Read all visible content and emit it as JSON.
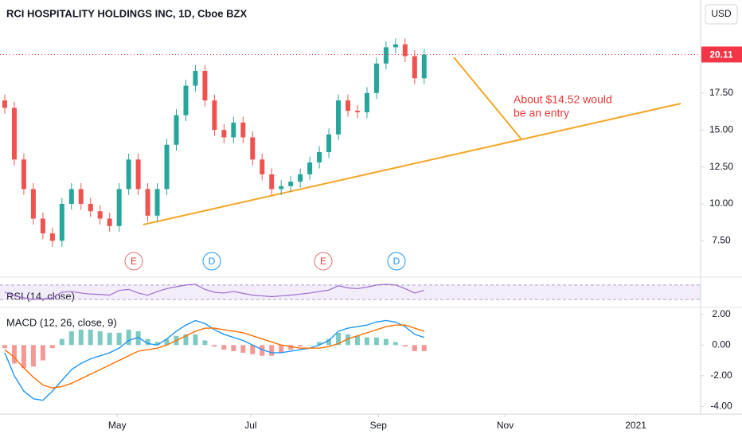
{
  "chart_data": [
    {
      "type": "candlestick",
      "title": "RCI HOSPITALITY HOLDINGS INC, 1D, Cboe BZX",
      "currency": "USD",
      "open": [
        17,
        16.5,
        13,
        11,
        9,
        8,
        7.5,
        10,
        11,
        10,
        9.5,
        9,
        8.5,
        11,
        13,
        11,
        9.2,
        11,
        14,
        16,
        18,
        19,
        17,
        15,
        14.5,
        15.5,
        14.5,
        13,
        12,
        11,
        11.2,
        11.5,
        12,
        12.8,
        13.5,
        14.7,
        17,
        16.3,
        16.2,
        17.5,
        19.5,
        20.6,
        20.8,
        20,
        18.5
      ],
      "high": [
        17.4,
        16.9,
        13.4,
        11.4,
        9.4,
        8.4,
        10.4,
        11.4,
        11.4,
        10.4,
        9.9,
        9.4,
        11.4,
        13.4,
        13.4,
        11.4,
        11.4,
        14.4,
        16.4,
        18.4,
        19.4,
        19.4,
        17.4,
        15.4,
        15.9,
        15.9,
        14.9,
        13.4,
        12.4,
        11.6,
        11.9,
        12.4,
        13.2,
        13.9,
        15.1,
        17.4,
        17.4,
        16.7,
        17.9,
        19.9,
        21,
        21.2,
        21.2,
        20.4,
        20.51
      ],
      "low": [
        16.1,
        12.6,
        10.6,
        8.6,
        7.6,
        7.1,
        7.1,
        9.6,
        9.6,
        9.1,
        8.6,
        8.1,
        8.1,
        10.6,
        10.6,
        8.8,
        8.8,
        10.6,
        13.6,
        15.6,
        17.6,
        16.6,
        14.6,
        14.1,
        14.1,
        14.1,
        12.6,
        11.6,
        10.6,
        10.6,
        10.8,
        11.1,
        11.6,
        12.4,
        13.1,
        14.3,
        15.9,
        15.8,
        15.8,
        17.1,
        19.1,
        20.2,
        19.6,
        18.1,
        18.1
      ],
      "close": [
        16.5,
        13,
        11,
        9,
        8,
        7.5,
        10,
        11,
        10,
        9.5,
        9,
        8.5,
        11,
        13,
        11,
        9.2,
        11,
        14,
        16,
        18,
        19,
        17,
        15,
        14.5,
        15.5,
        14.5,
        13,
        12,
        11,
        11.2,
        11.5,
        12,
        12.8,
        13.5,
        14.7,
        17,
        16.3,
        16.2,
        17.5,
        19.5,
        20.6,
        20.8,
        20,
        18.5,
        20.11
      ],
      "up_color": "#26a69a",
      "down_color": "#ef5350",
      "price_color": "#f23645",
      "ylim": [
        5.2,
        23.8
      ],
      "yticks": [
        {
          "value": 7.5,
          "label": "7.50"
        },
        {
          "value": 10,
          "label": "10.00"
        },
        {
          "value": 12.5,
          "label": "12.50"
        },
        {
          "value": 15,
          "label": "15.00"
        },
        {
          "value": 17.5,
          "label": "17.50"
        }
      ],
      "xlim": [
        -0.5,
        73
      ],
      "xticks": [
        {
          "value": 11.8,
          "label": "May"
        },
        {
          "value": 25.8,
          "label": "Jul"
        },
        {
          "value": 39.2,
          "label": "Sep"
        },
        {
          "value": 52.5,
          "label": "Nov"
        },
        {
          "value": 66.2,
          "label": "2021"
        }
      ],
      "events": [
        "E",
        "D",
        "E",
        "D"
      ],
      "annotation": [
        "About $14.52 would",
        "be an entry"
      ],
      "grid": false
    },
    {
      "type": "line",
      "title": "RSI (14, close)",
      "color": "#9c6bd0",
      "values": [
        50,
        40,
        35,
        30,
        32,
        35,
        50,
        52,
        48,
        45,
        44,
        42,
        55,
        58,
        48,
        42,
        52,
        60,
        65,
        70,
        72,
        58,
        50,
        48,
        52,
        47,
        42,
        40,
        38,
        40,
        42,
        45,
        48,
        52,
        56,
        68,
        62,
        60,
        64,
        70,
        72,
        70,
        60,
        48,
        55
      ],
      "ylim": [
        15,
        85
      ],
      "band": [
        30,
        70
      ]
    },
    {
      "type": "macd",
      "title": "MACD (12, 26, close, 9)",
      "series": [
        {
          "color": "#2196f3",
          "values": [
            -0.5,
            -2,
            -3,
            -3.5,
            -3.6,
            -3,
            -2.3,
            -1.6,
            -1.2,
            -0.9,
            -0.7,
            -0.5,
            -0.2,
            0.3,
            0.5,
            0.1,
            0,
            0.4,
            0.9,
            1.3,
            1.6,
            1.4,
            1.0,
            0.7,
            0.5,
            0.3,
            0,
            -0.3,
            -0.5,
            -0.5,
            -0.4,
            -0.3,
            -0.2,
            0,
            0.3,
            0.9,
            1.1,
            1.2,
            1.3,
            1.5,
            1.6,
            1.5,
            1.2,
            0.7,
            0.5
          ]
        },
        {
          "color": "#ff6d00",
          "values": [
            -0.3,
            -0.8,
            -1.5,
            -2.1,
            -2.6,
            -2.8,
            -2.7,
            -2.5,
            -2.2,
            -1.9,
            -1.6,
            -1.3,
            -1.0,
            -0.7,
            -0.4,
            -0.3,
            -0.2,
            0,
            0.3,
            0.6,
            0.9,
            1.1,
            1.1,
            1.0,
            0.9,
            0.8,
            0.6,
            0.4,
            0.2,
            0,
            -0.1,
            -0.2,
            -0.2,
            -0.2,
            -0.1,
            0.1,
            0.4,
            0.6,
            0.8,
            1.0,
            1.2,
            1.3,
            1.3,
            1.1,
            0.9
          ]
        }
      ],
      "histogram": [
        -0.2,
        -1.2,
        -1.5,
        -1.4,
        -1.0,
        -0.2,
        0.4,
        0.9,
        1.0,
        1.0,
        0.9,
        0.8,
        0.8,
        1.0,
        0.9,
        0.4,
        0.2,
        0.4,
        0.6,
        0.7,
        0.7,
        0.3,
        -0.1,
        -0.3,
        -0.4,
        -0.5,
        -0.6,
        -0.7,
        -0.7,
        -0.5,
        -0.3,
        -0.1,
        0,
        0.2,
        0.4,
        0.8,
        0.7,
        0.6,
        0.5,
        0.5,
        0.4,
        0.2,
        -0.1,
        -0.4,
        -0.4
      ],
      "hist_up_color": "#26a69a",
      "hist_down_color": "#ef5350",
      "ylim": [
        -4.5,
        2.35
      ],
      "yticks": [
        {
          "value": 2,
          "label": "2.00"
        },
        {
          "value": 0,
          "label": "0.00"
        },
        {
          "value": -2,
          "label": "-2.00"
        },
        {
          "value": -4,
          "label": "-4.00"
        }
      ]
    }
  ]
}
